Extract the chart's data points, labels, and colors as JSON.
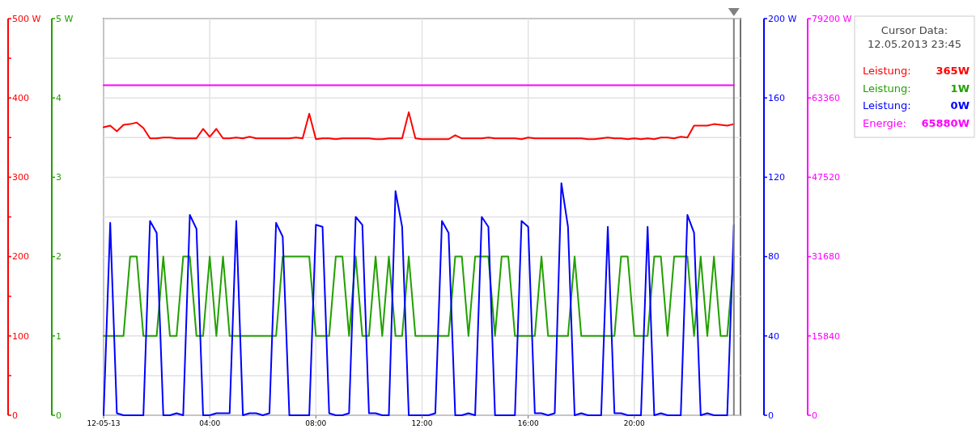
{
  "chart_data": [
    {
      "type": "line",
      "x": [
        0,
        0.25,
        0.5,
        0.75,
        1,
        1.25,
        1.5,
        1.75,
        2,
        2.25,
        2.5,
        2.75,
        3,
        3.25,
        3.5,
        3.75,
        4,
        4.25,
        4.5,
        4.75,
        5,
        5.25,
        5.5,
        5.75,
        6,
        6.25,
        6.5,
        6.75,
        7,
        7.25,
        7.5,
        7.75,
        8,
        8.25,
        8.5,
        8.75,
        9,
        9.25,
        9.5,
        9.75,
        10,
        10.25,
        10.5,
        10.75,
        11,
        11.25,
        11.5,
        11.75,
        12,
        12.25,
        12.5,
        12.75,
        13,
        13.25,
        13.5,
        13.75,
        14,
        14.25,
        14.5,
        14.75,
        15,
        15.25,
        15.5,
        15.75,
        16,
        16.25,
        16.5,
        16.75,
        17,
        17.25,
        17.5,
        17.75,
        18,
        18.25,
        18.5,
        18.75,
        19,
        19.25,
        19.5,
        19.75,
        20,
        20.25,
        20.5,
        20.75,
        21,
        21.25,
        21.5,
        21.75,
        22,
        22.25,
        22.5,
        22.75,
        23,
        23.25,
        23.5,
        23.75
      ],
      "xlim": [
        0,
        24
      ],
      "xticks": [
        {
          "value": 0,
          "label": "12-05-13"
        },
        {
          "value": 4,
          "label": "04:00"
        },
        {
          "value": 8,
          "label": "08:00"
        },
        {
          "value": 12,
          "label": "12:00"
        },
        {
          "value": 16,
          "label": "16:00"
        },
        {
          "value": 20,
          "label": "20:00"
        }
      ],
      "ylim": [
        0,
        500
      ],
      "yticks": [
        0,
        {
          "value": 50,
          "label": null
        },
        100,
        {
          "value": 150,
          "label": null
        },
        200,
        {
          "value": 250,
          "label": null
        },
        300,
        {
          "value": 350,
          "label": null
        },
        400,
        {
          "value": 450,
          "label": null
        },
        {
          "value": 500,
          "label": "500 W"
        }
      ],
      "y2lim": [
        0,
        5
      ],
      "y2ticks": [
        0,
        1,
        2,
        3,
        4,
        {
          "value": 5,
          "label": "5 W"
        }
      ],
      "y3lim": [
        0,
        200
      ],
      "y3ticks": [
        0,
        40,
        80,
        120,
        160,
        {
          "value": 200,
          "label": "200 W"
        }
      ],
      "grid": true,
      "legend": "top right",
      "legend_title": "Cursor Data:\n12.05.2013 23:45",
      "annotations": [
        "365W",
        "1W",
        "0W"
      ],
      "ref_lines": [
        {
          "axis": "x",
          "value": 23.75,
          "color": "#808080"
        }
      ],
      "series": [
        {
          "name": "Leistung:",
          "color": "#ff0000",
          "values": [
            363,
            365,
            358,
            366,
            367,
            369,
            362,
            349,
            349,
            350,
            350,
            349,
            349,
            349,
            349,
            361,
            351,
            361,
            349,
            349,
            350,
            349,
            351,
            349,
            349,
            349,
            349,
            349,
            349,
            350,
            349,
            380,
            348,
            349,
            349,
            348,
            349,
            349,
            349,
            349,
            349,
            348,
            348,
            349,
            349,
            349,
            382,
            349,
            348,
            348,
            348,
            348,
            348,
            353,
            349,
            349,
            349,
            349,
            350,
            349,
            349,
            349,
            349,
            348,
            350,
            349,
            349,
            349,
            349,
            349,
            349,
            349,
            349,
            348,
            348,
            349,
            350,
            349,
            349,
            348,
            349,
            348,
            349,
            348,
            350,
            350,
            349,
            351,
            350,
            365,
            365,
            365,
            367,
            366,
            365,
            367
          ]
        },
        {
          "name": "Leistung:",
          "color": "#22a000",
          "axis": "y2",
          "values": [
            1,
            1,
            1,
            1,
            2,
            2,
            1,
            1,
            1,
            2,
            1,
            1,
            2,
            2,
            1,
            1,
            2,
            1,
            2,
            1,
            1,
            1,
            1,
            1,
            1,
            1,
            1,
            2,
            2,
            2,
            2,
            2,
            1,
            1,
            1,
            2,
            2,
            1,
            2,
            1,
            1,
            2,
            1,
            2,
            1,
            1,
            2,
            1,
            1,
            1,
            1,
            1,
            1,
            2,
            2,
            1,
            2,
            2,
            2,
            1,
            2,
            2,
            1,
            1,
            1,
            1,
            2,
            1,
            1,
            1,
            1,
            2,
            1,
            1,
            1,
            1,
            1,
            1,
            2,
            2,
            1,
            1,
            1,
            2,
            2,
            1,
            2,
            2,
            2,
            1,
            2,
            1,
            2,
            1,
            1,
            2
          ]
        },
        {
          "name": "Leistung:",
          "color": "#0000ff",
          "axis": "y3",
          "values": [
            0,
            97,
            1,
            0,
            0,
            0,
            0,
            98,
            92,
            0,
            0,
            1,
            0,
            101,
            94,
            0,
            0,
            1,
            1,
            1,
            98,
            0,
            1,
            1,
            0,
            1,
            97,
            90,
            0,
            0,
            0,
            0,
            96,
            95,
            1,
            0,
            0,
            1,
            100,
            96,
            1,
            1,
            0,
            0,
            113,
            95,
            0,
            0,
            0,
            0,
            1,
            98,
            92,
            0,
            0,
            1,
            0,
            100,
            95,
            0,
            0,
            0,
            0,
            98,
            95,
            1,
            1,
            0,
            1,
            117,
            95,
            0,
            1,
            0,
            0,
            0,
            95,
            1,
            1,
            0,
            0,
            0,
            95,
            0,
            1,
            0,
            0,
            0,
            101,
            92,
            0,
            1,
            0,
            0,
            0,
            96
          ]
        }
      ]
    },
    {
      "type": "line",
      "x": [
        0,
        23.75
      ],
      "xlim": [
        0,
        24
      ],
      "ylim": [
        0,
        79200
      ],
      "yticks": [
        0,
        15840,
        31680,
        47520,
        63360,
        {
          "value": 79200,
          "label": "79200 W"
        }
      ],
      "tick_labels": "y",
      "legend": "top right",
      "annotations": [
        "65880W"
      ],
      "series": [
        {
          "name": "Energie:",
          "color": "#ff00ff",
          "values": [
            65880,
            65880
          ]
        }
      ]
    }
  ]
}
